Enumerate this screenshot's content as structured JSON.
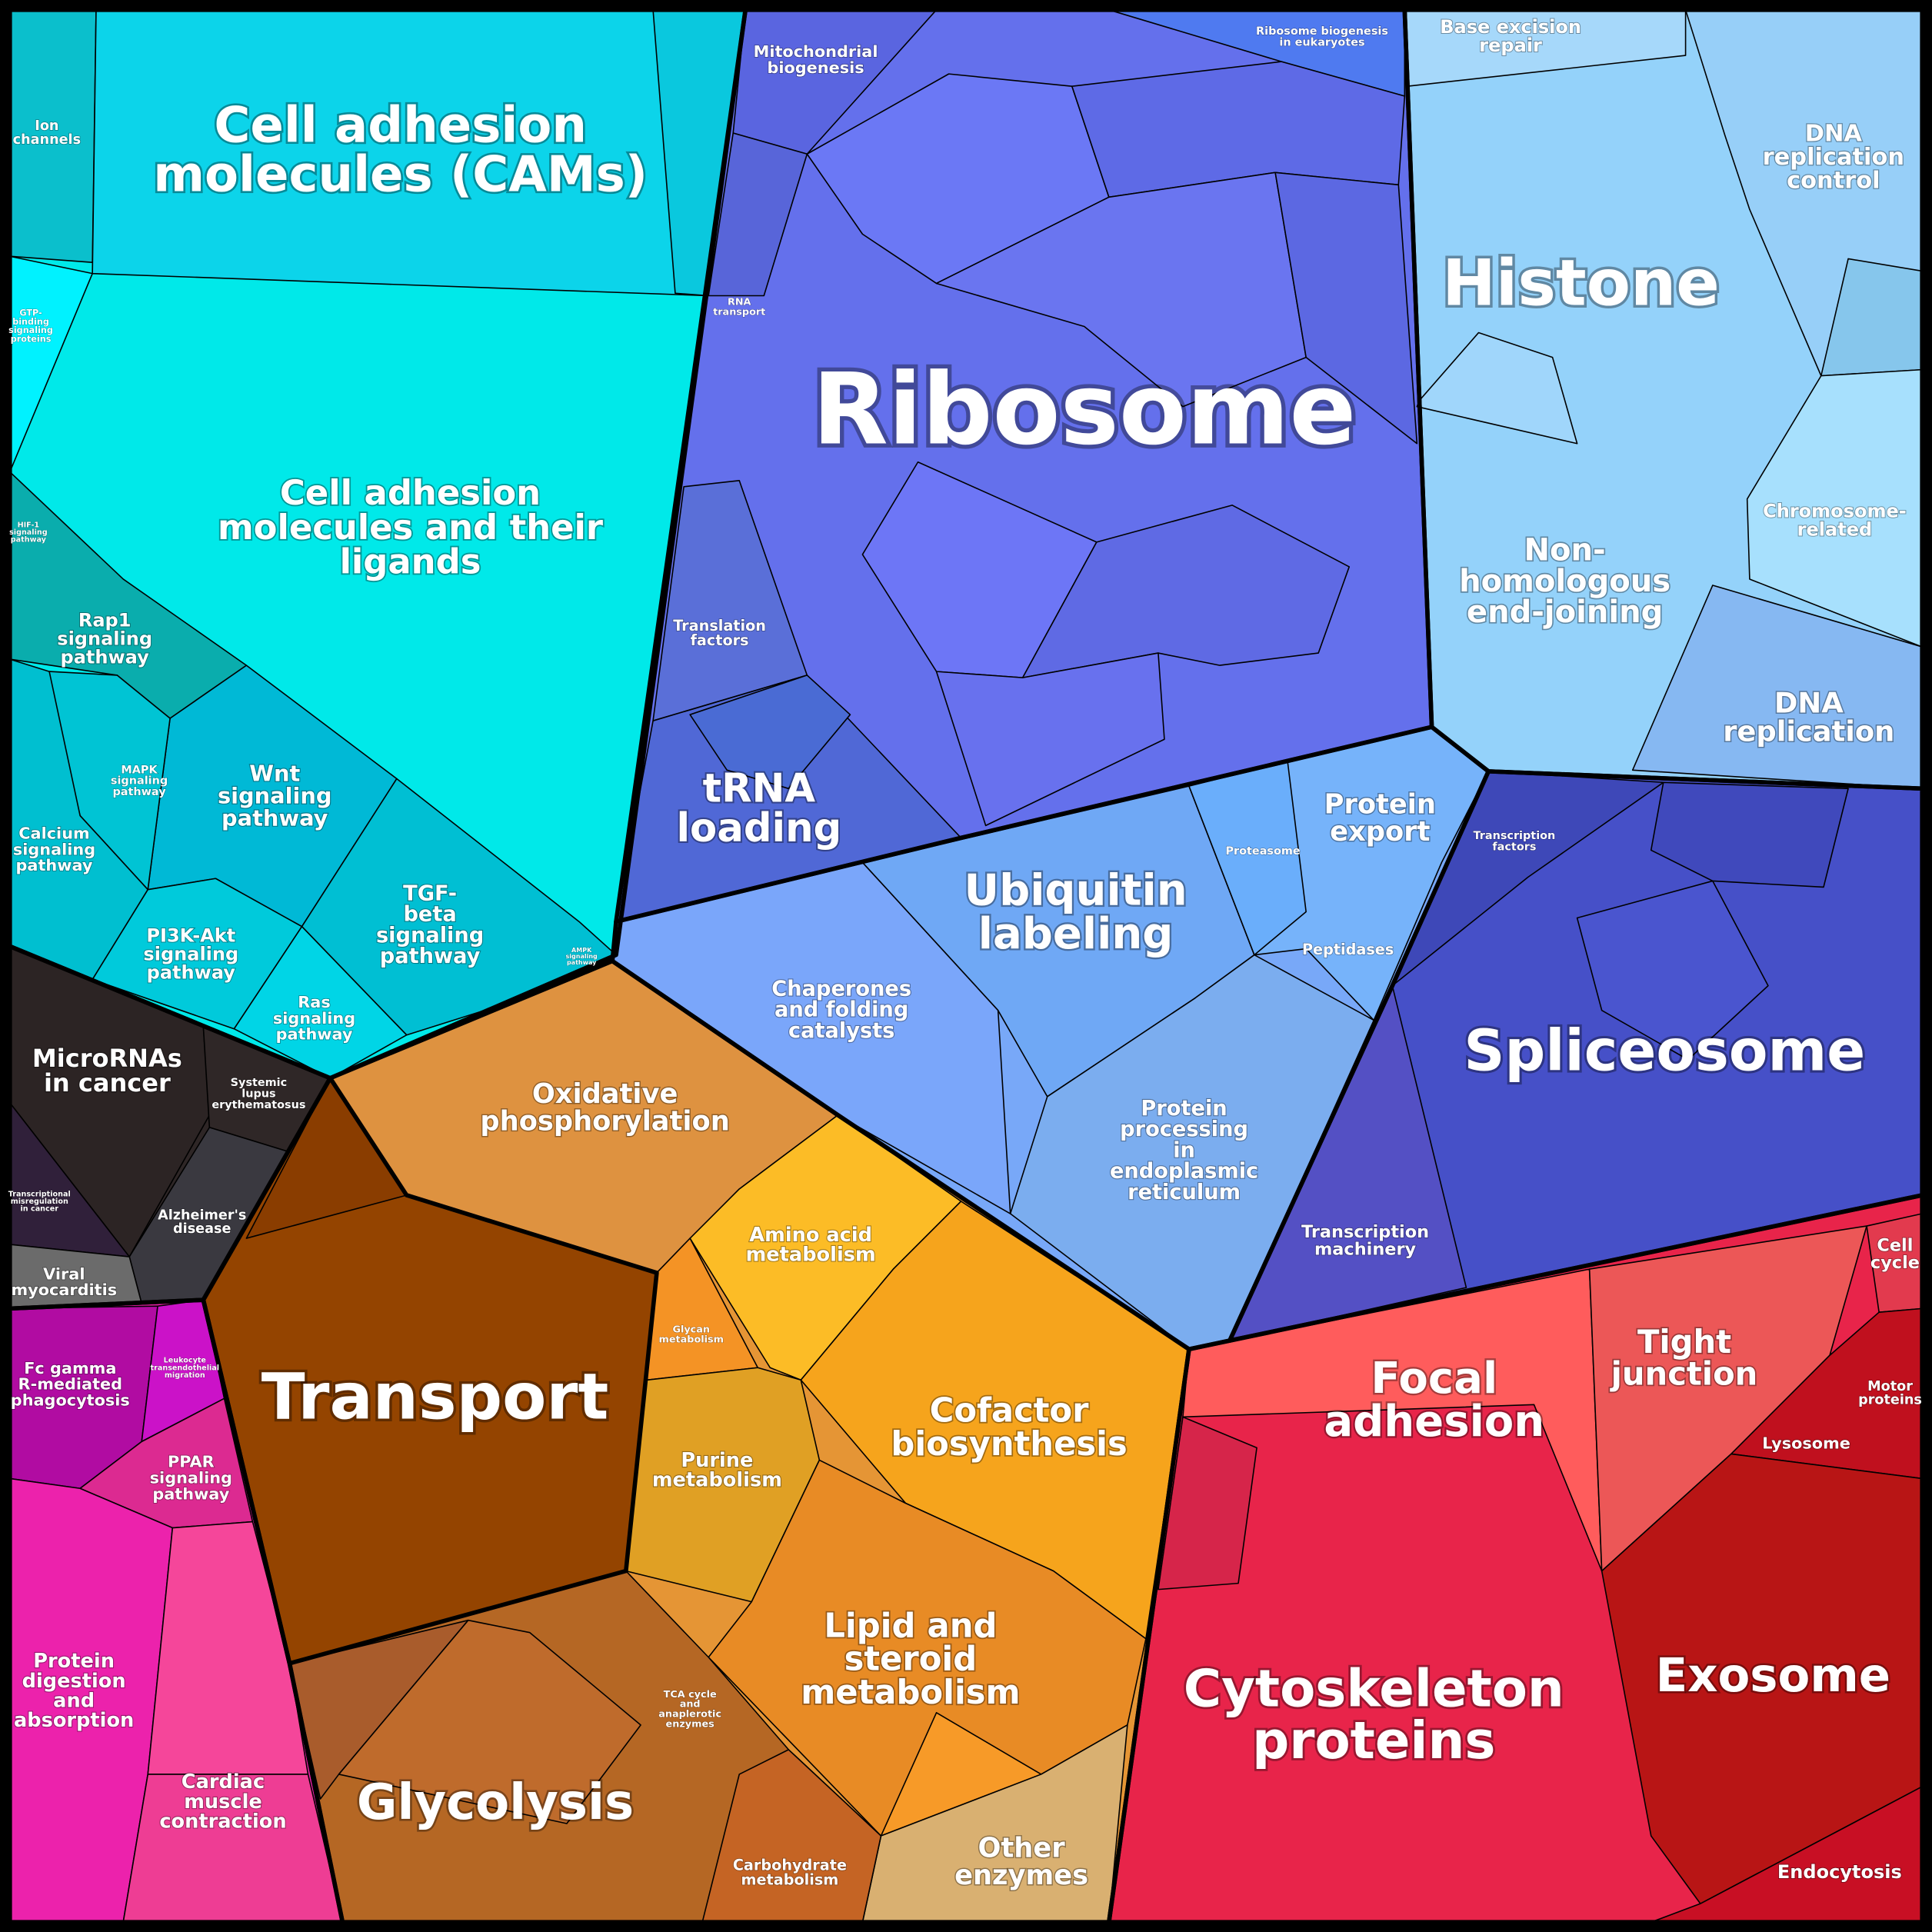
{
  "regions": [
    {
      "label": [
        "Ion",
        "channels"
      ]
    },
    {
      "label": [
        "Cell adhesion",
        "molecules (CAMs)"
      ]
    },
    {
      "label": [
        "GTP-",
        "binding",
        "signaling",
        "proteins"
      ]
    },
    {
      "label": [
        "Cell adhesion",
        "molecules and their",
        "ligands"
      ]
    },
    {
      "label": [
        "HIF-1",
        "signaling",
        "pathway"
      ]
    },
    {
      "label": [
        "Rap1",
        "signaling",
        "pathway"
      ]
    },
    {
      "label": [
        "MAPK",
        "signaling",
        "pathway"
      ]
    },
    {
      "label": [
        "Wnt",
        "signaling",
        "pathway"
      ]
    },
    {
      "label": [
        "Calcium",
        "signaling",
        "pathway"
      ]
    },
    {
      "label": [
        "TGF-",
        "beta",
        "signaling",
        "pathway"
      ]
    },
    {
      "label": [
        "PI3K-Akt",
        "signaling",
        "pathway"
      ]
    },
    {
      "label": [
        "Ras",
        "signaling",
        "pathway"
      ]
    },
    {
      "label": [
        "AMPK",
        "signaling",
        "pathway"
      ]
    },
    {
      "label": [
        "MicroRNAs",
        "in cancer"
      ]
    },
    {
      "label": [
        "Systemic",
        "lupus",
        "erythematosus"
      ]
    },
    {
      "label": [
        "Transcriptional",
        "misregulation",
        "in cancer"
      ]
    },
    {
      "label": [
        "Alzheimer's",
        "disease"
      ]
    },
    {
      "label": [
        "Viral",
        "myocarditis"
      ]
    },
    {
      "label": [
        "Fc gamma",
        "R-mediated",
        "phagocytosis"
      ]
    },
    {
      "label": [
        "Leukocyte",
        "transendothelial",
        "migration"
      ]
    },
    {
      "label": [
        "PPAR",
        "signaling",
        "pathway"
      ]
    },
    {
      "label": [
        "Protein",
        "digestion",
        "and",
        "absorption"
      ]
    },
    {
      "label": [
        "Cardiac",
        "muscle",
        "contraction"
      ]
    },
    {
      "label": [
        "Oxidative",
        "phosphorylation"
      ]
    },
    {
      "label": [
        "Transport"
      ]
    },
    {
      "label": [
        "Glycan",
        "metabolism"
      ]
    },
    {
      "label": [
        "Amino acid",
        "metabolism"
      ]
    },
    {
      "label": [
        "Cofactor",
        "biosynthesis"
      ]
    },
    {
      "label": [
        "Purine",
        "metabolism"
      ]
    },
    {
      "label": [
        "TCA cycle",
        "and",
        "anaplerotic",
        "enzymes"
      ]
    },
    {
      "label": [
        "Lipid and",
        "steroid",
        "metabolism"
      ]
    },
    {
      "label": [
        "Glycolysis"
      ]
    },
    {
      "label": [
        "Carbohydrate",
        "metabolism"
      ]
    },
    {
      "label": [
        "Other",
        "enzymes"
      ]
    },
    {
      "label": [
        "Mitochondrial",
        "biogenesis"
      ]
    },
    {
      "label": [
        "Ribosome biogenesis",
        "in eukaryotes"
      ]
    },
    {
      "label": [
        "RNA",
        "transport"
      ]
    },
    {
      "label": [
        "Ribosome"
      ]
    },
    {
      "label": [
        "Translation",
        "factors"
      ]
    },
    {
      "label": [
        "tRNA",
        "loading"
      ]
    },
    {
      "label": [
        "Ubiquitin",
        "labeling"
      ]
    },
    {
      "label": [
        "Proteasome"
      ]
    },
    {
      "label": [
        "Protein",
        "export"
      ]
    },
    {
      "label": [
        "Peptidases"
      ]
    },
    {
      "label": [
        "Chaperones",
        "and folding",
        "catalysts"
      ]
    },
    {
      "label": [
        "Protein",
        "processing",
        "in",
        "endoplasmic",
        "reticulum"
      ]
    },
    {
      "label": [
        "Base excision",
        "repair"
      ]
    },
    {
      "label": [
        "DNA",
        "replication",
        "control"
      ]
    },
    {
      "label": [
        "Histone"
      ]
    },
    {
      "label": [
        "Chromosome-",
        "related"
      ]
    },
    {
      "label": [
        "Non-",
        "homologous",
        "end-joining"
      ]
    },
    {
      "label": [
        "DNA",
        "replication"
      ]
    },
    {
      "label": [
        "Transcription",
        "factors"
      ]
    },
    {
      "label": [
        "Spliceosome"
      ]
    },
    {
      "label": [
        "Transcription",
        "machinery"
      ]
    },
    {
      "label": [
        "Cell",
        "cycle"
      ]
    },
    {
      "label": [
        "Tight",
        "junction"
      ]
    },
    {
      "label": [
        "Focal",
        "adhesion"
      ]
    },
    {
      "label": [
        "Motor",
        "proteins"
      ]
    },
    {
      "label": [
        "Lysosome"
      ]
    },
    {
      "label": [
        "Exosome"
      ]
    },
    {
      "label": [
        "Cytoskeleton",
        "proteins"
      ]
    },
    {
      "label": [
        "Endocytosis"
      ]
    }
  ]
}
